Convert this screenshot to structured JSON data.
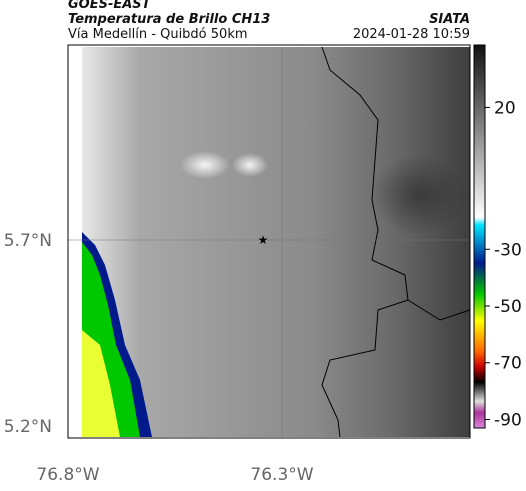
{
  "header": {
    "title": "GOES-EAST",
    "subtitle": "Temperatura de Brillo CH13",
    "location": "Vía Medellín - Quibdó 50km",
    "source": "SIATA",
    "datetime": "2024-01-28 10:59"
  },
  "map": {
    "lat_labels": [
      "5.7°N",
      "5.2°N"
    ],
    "lon_labels": [
      "76.8°W",
      "76.3°W"
    ]
  },
  "colorbar": {
    "lim": [
      42,
      -93
    ],
    "ticks": [
      20,
      -30,
      -50,
      -70,
      -90
    ]
  }
}
